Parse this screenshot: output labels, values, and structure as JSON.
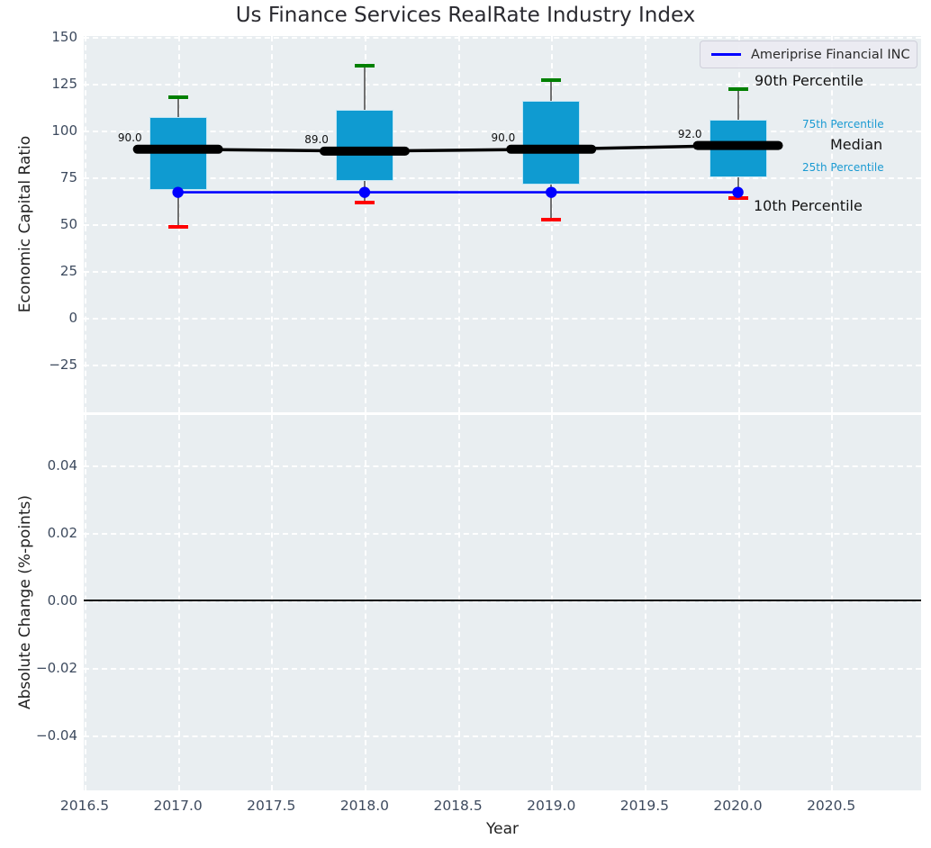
{
  "title": "Us Finance Services RealRate Industry Index",
  "colors": {
    "box_fill": "#0f9bd1",
    "median_line": "#000000",
    "p90_cap": "#008000",
    "p10_cap": "#ff0000",
    "company_line": "#0000ff",
    "percentile_blue_label": "#1a9ad2",
    "plot_background": "#e9eef1",
    "tick_label": "#3d4a5e"
  },
  "legend": {
    "entries": [
      {
        "label": "Ameriprise Financial INC",
        "color": "#0000ff"
      }
    ]
  },
  "chart_data": {
    "type": "boxplot",
    "title": "Us Finance Services RealRate Industry Index",
    "xlabel": "Year",
    "grid": "on",
    "x_ticks": [
      {
        "value": 2016.5,
        "label": "2016.5"
      },
      {
        "value": 2017.0,
        "label": "2017.0"
      },
      {
        "value": 2017.5,
        "label": "2017.5"
      },
      {
        "value": 2018.0,
        "label": "2018.0"
      },
      {
        "value": 2018.5,
        "label": "2018.5"
      },
      {
        "value": 2019.0,
        "label": "2019.0"
      },
      {
        "value": 2019.5,
        "label": "2019.5"
      },
      {
        "value": 2020.0,
        "label": "2020.0"
      },
      {
        "value": 2020.5,
        "label": "2020.5"
      }
    ],
    "subplots": [
      {
        "ylabel": "Economic Capital Ratio",
        "ylim": [
          -50,
          150.5
        ],
        "y_ticks": [
          {
            "value": 150,
            "label": "150"
          },
          {
            "value": 125,
            "label": "125"
          },
          {
            "value": 100,
            "label": "100"
          },
          {
            "value": 75,
            "label": "75"
          },
          {
            "value": 50,
            "label": "50"
          },
          {
            "value": 25,
            "label": "25"
          },
          {
            "value": 0,
            "label": "0"
          },
          {
            "value": -25,
            "label": "−25"
          }
        ],
        "boxes": [
          {
            "year": 2017,
            "p10": 48.5,
            "p25": 68.5,
            "median": 90.0,
            "p75": 107.0,
            "p90": 118.0,
            "median_label": "90.0"
          },
          {
            "year": 2018,
            "p10": 61.5,
            "p25": 73.0,
            "median": 89.0,
            "p75": 111.0,
            "p90": 134.5,
            "median_label": "89.0"
          },
          {
            "year": 2019,
            "p10": 52.5,
            "p25": 71.0,
            "median": 90.0,
            "p75": 116.0,
            "p90": 127.0,
            "median_label": "90.0"
          },
          {
            "year": 2020,
            "p10": 64.0,
            "p25": 75.0,
            "median": 92.0,
            "p75": 106.0,
            "p90": 122.0,
            "median_label": "92.0"
          }
        ],
        "company_line": {
          "name": "Ameriprise Financial INC",
          "x": [
            2017,
            2018,
            2019,
            2020
          ],
          "values": [
            67,
            67,
            67,
            67
          ]
        },
        "percentile_labels": {
          "p90": "90th Percentile",
          "p75": "75th Percentile",
          "median": "Median",
          "p25": "25th Percentile",
          "p10": "10th Percentile"
        }
      },
      {
        "ylabel": "Absolute Change (%-points)",
        "ylim": [
          -0.055,
          0.055
        ],
        "y_ticks": [
          {
            "value": 0.04,
            "label": "0.04"
          },
          {
            "value": 0.02,
            "label": "0.02"
          },
          {
            "value": 0.0,
            "label": "0.00"
          },
          {
            "value": -0.02,
            "label": "−0.02"
          },
          {
            "value": -0.04,
            "label": "−0.04"
          }
        ],
        "zero_line": 0.0,
        "series": []
      }
    ]
  }
}
